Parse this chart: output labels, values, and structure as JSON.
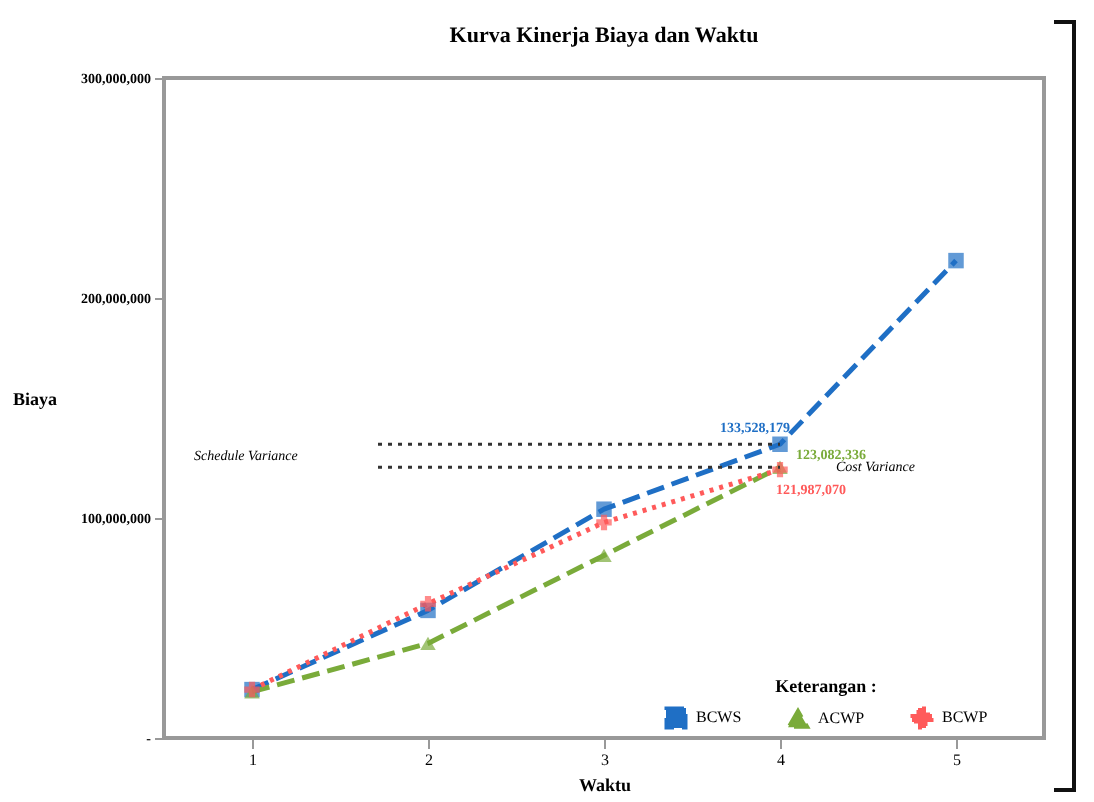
{
  "chart_data": {
    "type": "line",
    "title": "Kurva Kinerja Biaya dan Waktu",
    "xlabel": "Waktu",
    "ylabel": "Biaya",
    "legend_title": "Keterangan :",
    "categories": [
      "1",
      "2",
      "3",
      "4",
      "5"
    ],
    "series": [
      {
        "name": "BCWS",
        "color": "#1f6fc5",
        "marker": "square",
        "line_style": "dashed",
        "values": [
          22000000,
          58000000,
          104000000,
          133528179,
          217000000
        ],
        "value_labels": [
          null,
          null,
          null,
          "133,528,179",
          null
        ]
      },
      {
        "name": "ACWP",
        "color": "#7aab3a",
        "marker": "triangle",
        "line_style": "dashed",
        "values": [
          21000000,
          43000000,
          83000000,
          123082336,
          null
        ],
        "value_labels": [
          null,
          null,
          null,
          "123,082,336",
          null
        ]
      },
      {
        "name": "BCWP",
        "color": "#ff5a5a",
        "marker": "cross",
        "line_style": "dotted",
        "values": [
          22000000,
          61000000,
          98000000,
          121987070,
          null
        ],
        "value_labels": [
          null,
          null,
          null,
          "121,987,070",
          null
        ]
      }
    ],
    "ylim": [
      0,
      300000000
    ],
    "yticks": [
      {
        "value": 0,
        "label": "-"
      },
      {
        "value": 100000000,
        "label": "100,000,000"
      },
      {
        "value": 200000000,
        "label": "200,000,000"
      },
      {
        "value": 300000000,
        "label": "300,000,000"
      }
    ],
    "ref_lines": [
      {
        "axis": "y",
        "value": 133528179,
        "label": null,
        "color": "#333333",
        "line_style": "dotted"
      },
      {
        "axis": "y",
        "value": 123082336,
        "label": null,
        "color": "#333333",
        "line_style": "dotted"
      }
    ],
    "annotations": [
      "Schedule Variance",
      "Cost Variance"
    ],
    "grid": false,
    "legend": "bottom right"
  }
}
